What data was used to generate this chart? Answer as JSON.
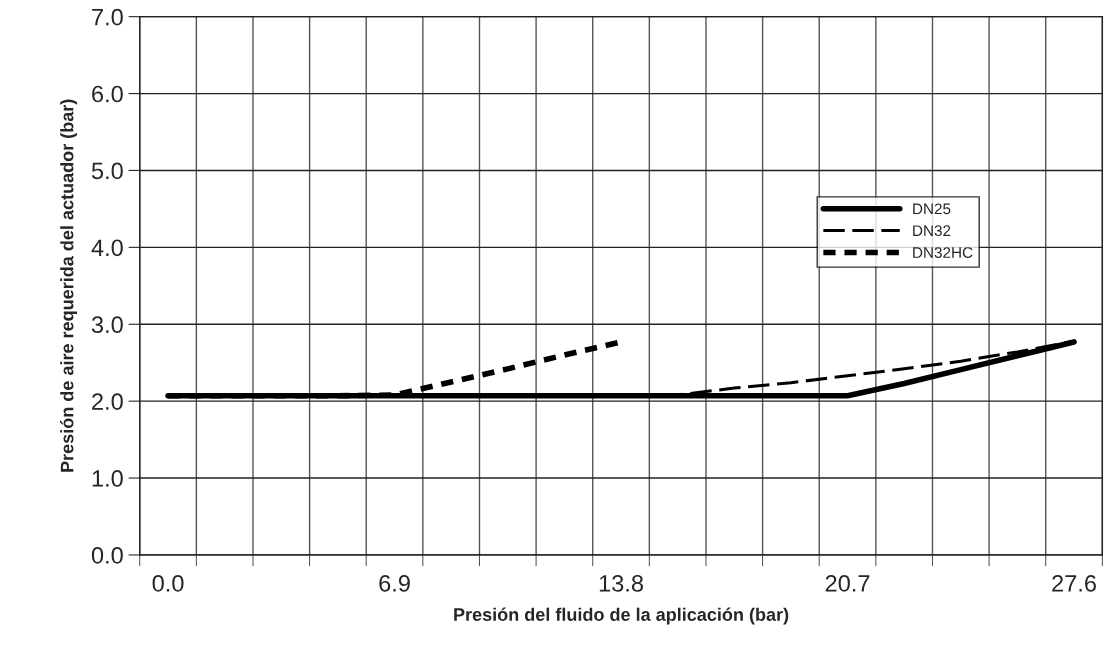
{
  "chart_data": {
    "type": "line",
    "xlabel": "Presión del fluido de la aplicación (bar)",
    "ylabel": "Presión de aire requerida del actuador (bar)",
    "categories": [
      "0.0",
      null,
      null,
      null,
      "6.9",
      null,
      null,
      null,
      "13.8",
      null,
      null,
      null,
      "20.7",
      null,
      null,
      null,
      "27.6"
    ],
    "series": [
      {
        "name": "DN25",
        "color": "#000000",
        "line_style": "solid",
        "values": [
          2.07,
          2.07,
          2.07,
          2.07,
          2.07,
          2.07,
          2.07,
          2.07,
          2.07,
          2.07,
          2.07,
          2.07,
          2.07,
          2.23,
          2.41,
          2.59,
          2.77
        ]
      },
      {
        "name": "DN32",
        "color": "#000000",
        "line_style": "dashed",
        "values": [
          2.07,
          2.07,
          2.07,
          2.07,
          2.07,
          2.07,
          2.07,
          2.07,
          2.07,
          2.08,
          2.17,
          2.24,
          2.33,
          2.42,
          2.52,
          2.64,
          2.78
        ]
      },
      {
        "name": "DN32HC",
        "color": "#000000",
        "line_style": "dotted",
        "values": [
          2.07,
          2.07,
          2.07,
          2.07,
          2.08,
          2.25,
          2.42,
          2.6,
          2.77,
          null,
          null,
          null,
          null,
          null,
          null,
          null,
          null
        ]
      }
    ],
    "ylim": [
      0,
      7
    ],
    "yticks": [
      {
        "value": 0,
        "label": "0.0"
      },
      {
        "value": 1,
        "label": "1.0"
      },
      {
        "value": 2,
        "label": "2.0"
      },
      {
        "value": 3,
        "label": "3.0"
      },
      {
        "value": 4,
        "label": "4.0"
      },
      {
        "value": 5,
        "label": "5.0"
      },
      {
        "value": 6,
        "label": "6.0"
      },
      {
        "value": 7,
        "label": "7.0"
      }
    ],
    "grid": true,
    "legend": "right",
    "marker": "none"
  }
}
